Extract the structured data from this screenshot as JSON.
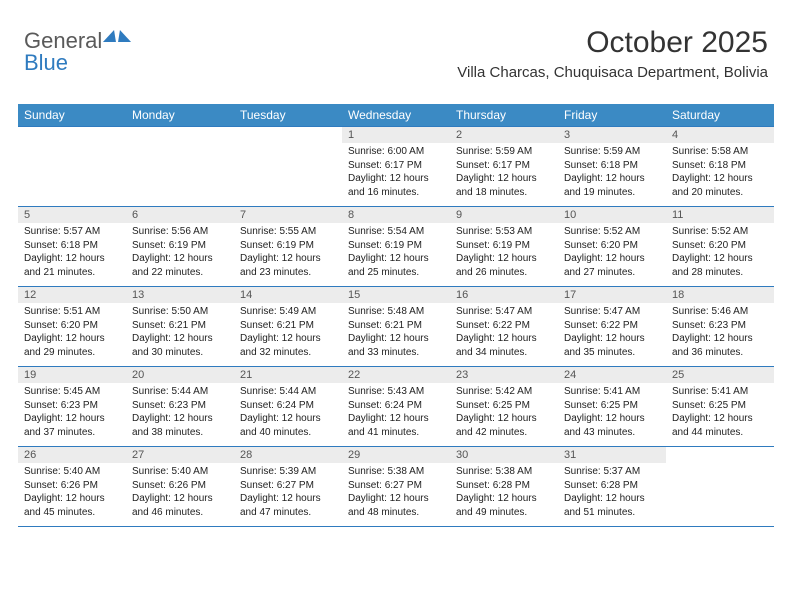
{
  "logo": {
    "part1": "General",
    "part2": "Blue"
  },
  "title": "October 2025",
  "subtitle": "Villa Charcas, Chuquisaca Department, Bolivia",
  "colors": {
    "header_bg": "#3b8ac4",
    "header_text": "#ffffff",
    "border": "#2f7bbf",
    "daynum_bg": "#ececec",
    "daynum_text": "#555555",
    "detail_text": "#222222",
    "logo_gray": "#5a5a5a",
    "logo_blue": "#2f7bbf",
    "title_color": "#333333"
  },
  "typography": {
    "title_fontsize": 30,
    "subtitle_fontsize": 15,
    "header_fontsize": 12,
    "daynum_fontsize": 11,
    "detail_fontsize": 10,
    "logo_fontsize": 22
  },
  "weekdays": [
    "Sunday",
    "Monday",
    "Tuesday",
    "Wednesday",
    "Thursday",
    "Friday",
    "Saturday"
  ],
  "weeks": [
    [
      null,
      null,
      null,
      {
        "num": "1",
        "sunrise": "Sunrise: 6:00 AM",
        "sunset": "Sunset: 6:17 PM",
        "daylight": "Daylight: 12 hours and 16 minutes."
      },
      {
        "num": "2",
        "sunrise": "Sunrise: 5:59 AM",
        "sunset": "Sunset: 6:17 PM",
        "daylight": "Daylight: 12 hours and 18 minutes."
      },
      {
        "num": "3",
        "sunrise": "Sunrise: 5:59 AM",
        "sunset": "Sunset: 6:18 PM",
        "daylight": "Daylight: 12 hours and 19 minutes."
      },
      {
        "num": "4",
        "sunrise": "Sunrise: 5:58 AM",
        "sunset": "Sunset: 6:18 PM",
        "daylight": "Daylight: 12 hours and 20 minutes."
      }
    ],
    [
      {
        "num": "5",
        "sunrise": "Sunrise: 5:57 AM",
        "sunset": "Sunset: 6:18 PM",
        "daylight": "Daylight: 12 hours and 21 minutes."
      },
      {
        "num": "6",
        "sunrise": "Sunrise: 5:56 AM",
        "sunset": "Sunset: 6:19 PM",
        "daylight": "Daylight: 12 hours and 22 minutes."
      },
      {
        "num": "7",
        "sunrise": "Sunrise: 5:55 AM",
        "sunset": "Sunset: 6:19 PM",
        "daylight": "Daylight: 12 hours and 23 minutes."
      },
      {
        "num": "8",
        "sunrise": "Sunrise: 5:54 AM",
        "sunset": "Sunset: 6:19 PM",
        "daylight": "Daylight: 12 hours and 25 minutes."
      },
      {
        "num": "9",
        "sunrise": "Sunrise: 5:53 AM",
        "sunset": "Sunset: 6:19 PM",
        "daylight": "Daylight: 12 hours and 26 minutes."
      },
      {
        "num": "10",
        "sunrise": "Sunrise: 5:52 AM",
        "sunset": "Sunset: 6:20 PM",
        "daylight": "Daylight: 12 hours and 27 minutes."
      },
      {
        "num": "11",
        "sunrise": "Sunrise: 5:52 AM",
        "sunset": "Sunset: 6:20 PM",
        "daylight": "Daylight: 12 hours and 28 minutes."
      }
    ],
    [
      {
        "num": "12",
        "sunrise": "Sunrise: 5:51 AM",
        "sunset": "Sunset: 6:20 PM",
        "daylight": "Daylight: 12 hours and 29 minutes."
      },
      {
        "num": "13",
        "sunrise": "Sunrise: 5:50 AM",
        "sunset": "Sunset: 6:21 PM",
        "daylight": "Daylight: 12 hours and 30 minutes."
      },
      {
        "num": "14",
        "sunrise": "Sunrise: 5:49 AM",
        "sunset": "Sunset: 6:21 PM",
        "daylight": "Daylight: 12 hours and 32 minutes."
      },
      {
        "num": "15",
        "sunrise": "Sunrise: 5:48 AM",
        "sunset": "Sunset: 6:21 PM",
        "daylight": "Daylight: 12 hours and 33 minutes."
      },
      {
        "num": "16",
        "sunrise": "Sunrise: 5:47 AM",
        "sunset": "Sunset: 6:22 PM",
        "daylight": "Daylight: 12 hours and 34 minutes."
      },
      {
        "num": "17",
        "sunrise": "Sunrise: 5:47 AM",
        "sunset": "Sunset: 6:22 PM",
        "daylight": "Daylight: 12 hours and 35 minutes."
      },
      {
        "num": "18",
        "sunrise": "Sunrise: 5:46 AM",
        "sunset": "Sunset: 6:23 PM",
        "daylight": "Daylight: 12 hours and 36 minutes."
      }
    ],
    [
      {
        "num": "19",
        "sunrise": "Sunrise: 5:45 AM",
        "sunset": "Sunset: 6:23 PM",
        "daylight": "Daylight: 12 hours and 37 minutes."
      },
      {
        "num": "20",
        "sunrise": "Sunrise: 5:44 AM",
        "sunset": "Sunset: 6:23 PM",
        "daylight": "Daylight: 12 hours and 38 minutes."
      },
      {
        "num": "21",
        "sunrise": "Sunrise: 5:44 AM",
        "sunset": "Sunset: 6:24 PM",
        "daylight": "Daylight: 12 hours and 40 minutes."
      },
      {
        "num": "22",
        "sunrise": "Sunrise: 5:43 AM",
        "sunset": "Sunset: 6:24 PM",
        "daylight": "Daylight: 12 hours and 41 minutes."
      },
      {
        "num": "23",
        "sunrise": "Sunrise: 5:42 AM",
        "sunset": "Sunset: 6:25 PM",
        "daylight": "Daylight: 12 hours and 42 minutes."
      },
      {
        "num": "24",
        "sunrise": "Sunrise: 5:41 AM",
        "sunset": "Sunset: 6:25 PM",
        "daylight": "Daylight: 12 hours and 43 minutes."
      },
      {
        "num": "25",
        "sunrise": "Sunrise: 5:41 AM",
        "sunset": "Sunset: 6:25 PM",
        "daylight": "Daylight: 12 hours and 44 minutes."
      }
    ],
    [
      {
        "num": "26",
        "sunrise": "Sunrise: 5:40 AM",
        "sunset": "Sunset: 6:26 PM",
        "daylight": "Daylight: 12 hours and 45 minutes."
      },
      {
        "num": "27",
        "sunrise": "Sunrise: 5:40 AM",
        "sunset": "Sunset: 6:26 PM",
        "daylight": "Daylight: 12 hours and 46 minutes."
      },
      {
        "num": "28",
        "sunrise": "Sunrise: 5:39 AM",
        "sunset": "Sunset: 6:27 PM",
        "daylight": "Daylight: 12 hours and 47 minutes."
      },
      {
        "num": "29",
        "sunrise": "Sunrise: 5:38 AM",
        "sunset": "Sunset: 6:27 PM",
        "daylight": "Daylight: 12 hours and 48 minutes."
      },
      {
        "num": "30",
        "sunrise": "Sunrise: 5:38 AM",
        "sunset": "Sunset: 6:28 PM",
        "daylight": "Daylight: 12 hours and 49 minutes."
      },
      {
        "num": "31",
        "sunrise": "Sunrise: 5:37 AM",
        "sunset": "Sunset: 6:28 PM",
        "daylight": "Daylight: 12 hours and 51 minutes."
      },
      null
    ]
  ]
}
